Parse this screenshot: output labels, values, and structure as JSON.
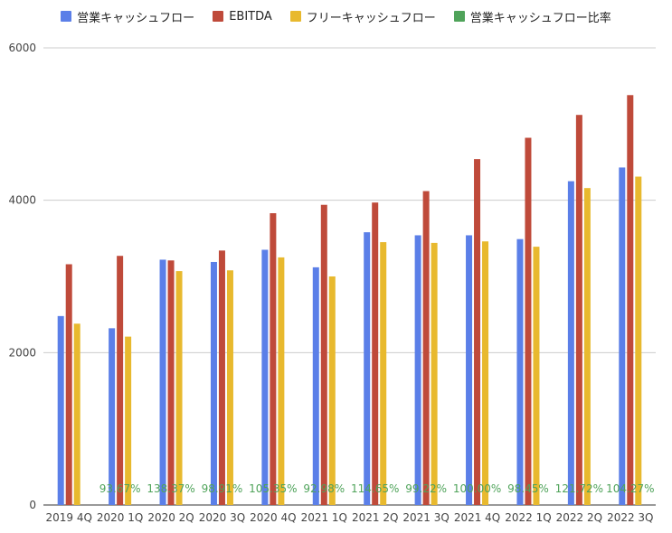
{
  "chart_data": {
    "type": "bar",
    "categories": [
      "2019 4Q",
      "2020 1Q",
      "2020 2Q",
      "2020 3Q",
      "2020 4Q",
      "2021 1Q",
      "2021 2Q",
      "2021 3Q",
      "2021 4Q",
      "2022 1Q",
      "2022 2Q",
      "2022 3Q"
    ],
    "series": [
      {
        "name": "営業キャッシュフロー",
        "color": "#5b7fe8",
        "values": [
          2480,
          2320,
          3220,
          3190,
          3350,
          3120,
          3580,
          3540,
          3540,
          3490,
          4250,
          4430
        ]
      },
      {
        "name": "EBITDA",
        "color": "#bf4a3a",
        "values": [
          3160,
          3270,
          3210,
          3340,
          3830,
          3940,
          3970,
          4120,
          4540,
          4820,
          5120,
          5380
        ]
      },
      {
        "name": "フリーキャッシュフロー",
        "color": "#e8b92e",
        "values": [
          2380,
          2210,
          3070,
          3080,
          3250,
          3000,
          3450,
          3440,
          3460,
          3390,
          4160,
          4310
        ]
      }
    ],
    "ratio_series": {
      "name": "営業キャッシュフロー比率",
      "color": "#4fa35a",
      "labels": [
        "",
        "93.67%",
        "138.37%",
        "98.91%",
        "105.35%",
        "92.98%",
        "114.65%",
        "99.22%",
        "100.00%",
        "98.45%",
        "121.72%",
        "104.27%"
      ]
    },
    "yticks": [
      "0",
      "2000",
      "4000",
      "6000"
    ],
    "ylim": [
      0,
      6000
    ],
    "grid": true,
    "legend_position": "top"
  }
}
